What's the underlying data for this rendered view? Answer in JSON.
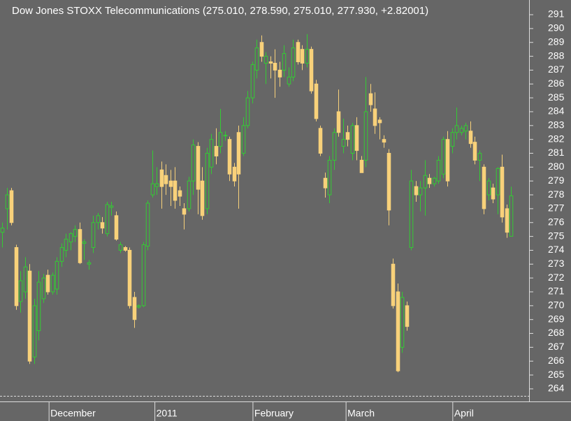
{
  "chart_data": {
    "type": "candlestick",
    "title": "Dow Jones STOXX Telecommunications (275.010, 278.590, 275.010, 277.930, +2.82001)",
    "up_color": "#33cc33",
    "down_color": "#f8d17a",
    "grid": false,
    "ylim": [
      263.09,
      292.06
    ],
    "yticks": [
      264,
      265,
      266,
      267,
      268,
      269,
      270,
      271,
      272,
      273,
      274,
      275,
      276,
      277,
      278,
      279,
      280,
      281,
      282,
      283,
      284,
      285,
      286,
      287,
      288,
      289,
      290,
      291
    ],
    "xlim": [
      -0.5,
      116
    ],
    "xticks": [
      {
        "value": 10.3,
        "label": "December"
      },
      {
        "value": 33.6,
        "label": "2011"
      },
      {
        "value": 55.2,
        "label": "February"
      },
      {
        "value": 75.7,
        "label": "March"
      },
      {
        "value": 99.2,
        "label": "April"
      }
    ],
    "ohlc": [
      [
        275.3,
        276.0,
        274.2,
        275.6
      ],
      [
        277.0,
        278.5,
        275.5,
        278.0
      ],
      [
        278.3,
        278.5,
        275.8,
        276.0
      ],
      [
        274.2,
        274.4,
        269.7,
        270.0
      ],
      [
        270.3,
        272.5,
        269.5,
        271.8
      ],
      [
        271.0,
        273.5,
        270.5,
        272.8
      ],
      [
        272.5,
        273.0,
        265.8,
        266.0
      ],
      [
        266.3,
        270.5,
        265.8,
        270.0
      ],
      [
        268.2,
        272.5,
        267.5,
        271.7
      ],
      [
        270.5,
        272.3,
        270.2,
        272.0
      ],
      [
        272.2,
        272.6,
        270.8,
        271.0
      ],
      [
        271.0,
        272.4,
        270.8,
        272.2
      ],
      [
        271.2,
        273.5,
        270.8,
        273.2
      ],
      [
        273.2,
        274.5,
        272.8,
        274.2
      ],
      [
        274.0,
        275.2,
        273.5,
        274.8
      ],
      [
        274.6,
        275.3,
        274.0,
        275.2
      ],
      [
        275.0,
        275.8,
        274.6,
        275.5
      ],
      [
        275.5,
        276.0,
        273.0,
        273.1
      ],
      [
        274.5,
        274.8,
        273.3,
        274.6
      ],
      [
        273.0,
        273.3,
        272.6,
        273.1
      ],
      [
        274.2,
        276.5,
        273.8,
        276.0
      ],
      [
        276.0,
        276.7,
        275.5,
        276.5
      ],
      [
        276.0,
        276.4,
        275.2,
        275.6
      ],
      [
        275.2,
        277.5,
        275.0,
        277.3
      ],
      [
        277.1,
        277.5,
        276.5,
        277.2
      ],
      [
        276.5,
        276.8,
        274.7,
        274.8
      ],
      [
        274.0,
        274.6,
        273.8,
        274.4
      ],
      [
        274.2,
        274.3,
        273.9,
        274.0
      ],
      [
        274.0,
        274.2,
        269.8,
        270.0
      ],
      [
        270.6,
        271.0,
        268.4,
        269.0
      ],
      [
        269.9,
        270.1,
        269.8,
        270.0
      ],
      [
        270.0,
        274.6,
        269.9,
        274.4
      ],
      [
        274.3,
        277.6,
        274.0,
        277.4
      ],
      [
        278.0,
        281.2,
        277.8,
        278.8
      ],
      [
        278.6,
        280.0,
        278.0,
        278.8
      ],
      [
        279.8,
        280.4,
        277.0,
        278.6
      ],
      [
        279.4,
        280.2,
        278.0,
        278.8
      ],
      [
        279.0,
        279.8,
        277.2,
        278.6
      ],
      [
        279.0,
        280.0,
        277.0,
        277.6
      ],
      [
        278.3,
        278.6,
        277.2,
        277.9
      ],
      [
        277.0,
        277.4,
        275.5,
        276.6
      ],
      [
        277.0,
        279.3,
        276.8,
        279.0
      ],
      [
        279.0,
        282.0,
        278.0,
        281.6
      ],
      [
        281.5,
        281.8,
        276.6,
        278.4
      ],
      [
        279.0,
        280.0,
        276.2,
        276.5
      ],
      [
        277.0,
        281.4,
        276.6,
        281.0
      ],
      [
        280.0,
        282.4,
        279.5,
        282.0
      ],
      [
        281.5,
        282.8,
        280.2,
        280.8
      ],
      [
        281.5,
        284.2,
        281.0,
        282.5
      ],
      [
        282.3,
        282.6,
        281.9,
        282.3
      ],
      [
        282.0,
        282.2,
        279.0,
        279.5
      ],
      [
        280.0,
        280.3,
        278.6,
        279.0
      ],
      [
        282.5,
        283.0,
        277.0,
        279.5
      ],
      [
        281.0,
        283.6,
        280.8,
        283.0
      ],
      [
        283.0,
        285.5,
        282.8,
        285.0
      ],
      [
        285.0,
        287.6,
        284.6,
        287.4
      ],
      [
        287.0,
        289.2,
        286.4,
        288.6
      ],
      [
        289.0,
        289.5,
        287.6,
        288.0
      ],
      [
        287.5,
        288.3,
        286.0,
        288.0
      ],
      [
        287.6,
        288.0,
        286.4,
        287.5
      ],
      [
        287.5,
        288.5,
        285.0,
        287.0
      ],
      [
        287.0,
        287.6,
        285.8,
        286.5
      ],
      [
        287.0,
        288.8,
        286.5,
        288.2
      ],
      [
        286.0,
        287.2,
        285.8,
        286.5
      ],
      [
        286.5,
        289.2,
        286.2,
        288.6
      ],
      [
        289.0,
        289.2,
        287.4,
        287.6
      ],
      [
        288.5,
        288.8,
        287.0,
        287.5
      ],
      [
        287.5,
        289.6,
        287.2,
        288.5
      ],
      [
        288.5,
        288.7,
        285.3,
        285.5
      ],
      [
        286.0,
        286.3,
        283.3,
        283.5
      ],
      [
        282.8,
        283.0,
        280.8,
        281.0
      ],
      [
        279.2,
        279.6,
        277.8,
        278.5
      ],
      [
        278.0,
        280.8,
        277.4,
        280.5
      ],
      [
        280.5,
        282.8,
        279.8,
        282.5
      ],
      [
        284.0,
        285.6,
        282.2,
        282.5
      ],
      [
        281.5,
        283.5,
        281.0,
        282.0
      ],
      [
        282.5,
        283.0,
        281.5,
        282.0
      ],
      [
        281.0,
        283.2,
        280.5,
        283.0
      ],
      [
        283.0,
        283.6,
        280.5,
        281.2
      ],
      [
        280.5,
        280.8,
        279.6,
        279.6
      ],
      [
        280.5,
        286.5,
        280.0,
        284.0
      ],
      [
        285.3,
        286.0,
        284.0,
        284.5
      ],
      [
        284.2,
        285.4,
        282.4,
        283.0
      ],
      [
        283.4,
        283.6,
        282.0,
        283.2
      ],
      [
        282.0,
        282.3,
        281.4,
        281.8
      ],
      [
        281.0,
        281.3,
        275.8,
        276.9
      ],
      [
        273.0,
        273.4,
        269.8,
        270.0
      ],
      [
        271.0,
        271.6,
        265.2,
        265.3
      ],
      [
        267.0,
        271.0,
        266.6,
        270.6
      ],
      [
        270.0,
        270.3,
        268.2,
        268.5
      ],
      [
        274.2,
        279.8,
        274.0,
        279.0
      ],
      [
        278.6,
        279.0,
        277.5,
        278.0
      ],
      [
        278.0,
        279.0,
        276.8,
        278.5
      ],
      [
        278.5,
        280.5,
        276.5,
        279.4
      ],
      [
        279.2,
        279.5,
        278.5,
        278.8
      ],
      [
        278.8,
        279.3,
        278.6,
        279.2
      ],
      [
        279.0,
        280.8,
        278.8,
        280.5
      ],
      [
        279.5,
        282.2,
        279.2,
        282.0
      ],
      [
        282.0,
        282.6,
        278.6,
        279.0
      ],
      [
        281.5,
        282.8,
        281.0,
        282.5
      ],
      [
        282.5,
        284.3,
        282.0,
        283.0
      ],
      [
        282.5,
        283.0,
        282.3,
        282.8
      ],
      [
        282.6,
        283.2,
        282.0,
        283.0
      ],
      [
        282.6,
        283.3,
        281.4,
        281.7
      ],
      [
        281.8,
        282.2,
        280.2,
        280.5
      ],
      [
        280.5,
        281.2,
        279.0,
        281.0
      ],
      [
        280.0,
        280.2,
        276.6,
        277.0
      ],
      [
        278.0,
        279.2,
        277.6,
        279.0
      ],
      [
        278.5,
        278.8,
        277.4,
        277.7
      ],
      [
        278.0,
        280.0,
        276.6,
        279.9
      ],
      [
        280.0,
        280.9,
        276.0,
        276.4
      ],
      [
        277.0,
        277.3,
        274.9,
        275.3
      ],
      [
        275.01,
        278.59,
        275.01,
        277.93
      ]
    ]
  }
}
